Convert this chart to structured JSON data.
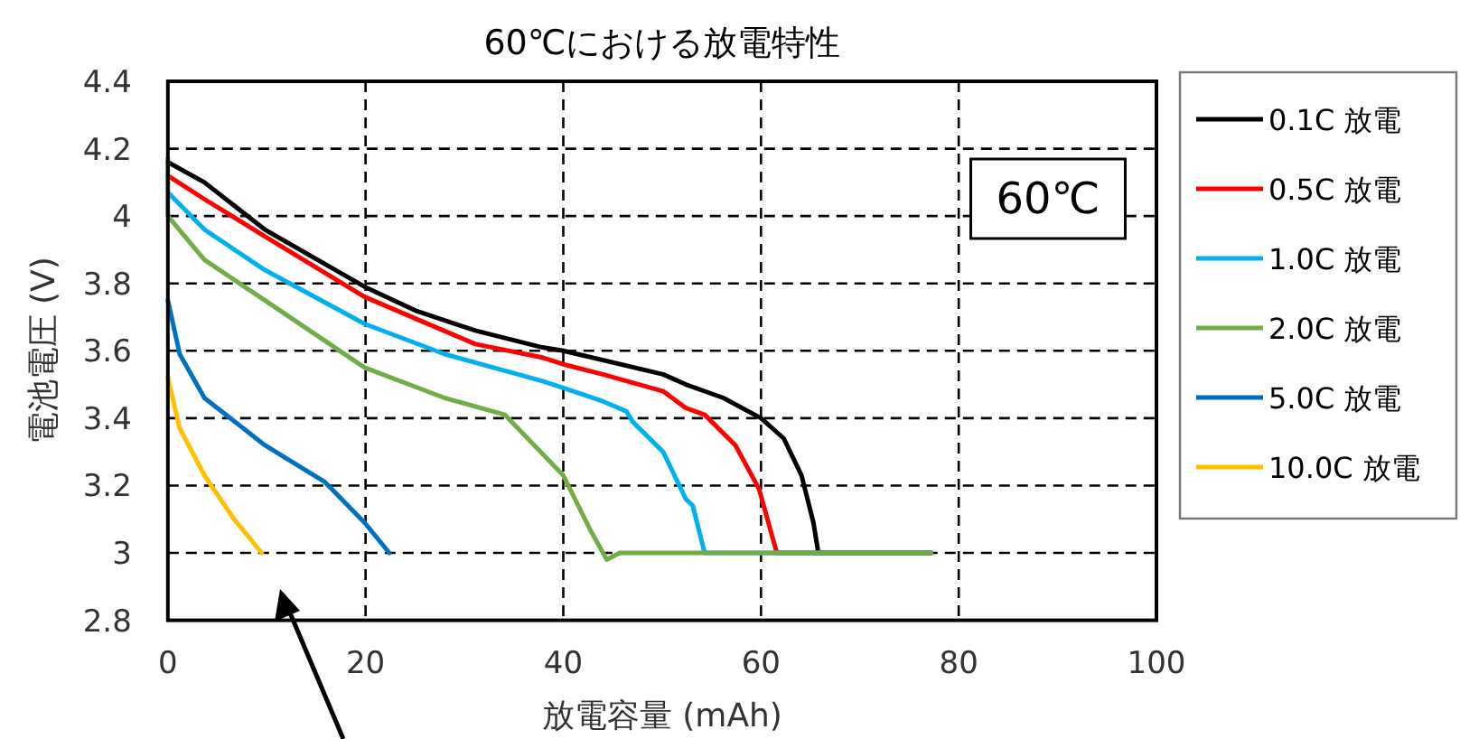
{
  "chart_data": {
    "type": "line",
    "title": "60℃における放電特性",
    "xlabel": "放電容量 (mAh)",
    "ylabel": "電池電圧 (V)",
    "annotations": [
      "60℃"
    ],
    "xlim": [
      0,
      100
    ],
    "xticks": [
      0,
      20,
      40,
      60,
      80,
      100
    ],
    "ylim": [
      2.8,
      4.4
    ],
    "yticks": [
      2.8,
      3,
      3.2,
      3.4,
      3.6,
      3.8,
      4,
      4.2,
      4.4
    ],
    "grid": true,
    "legend": "right",
    "marker": "none",
    "line_style": "solid",
    "series": [
      {
        "name": "0.1C 放電",
        "color": "#000000",
        "x": [
          0,
          3.7,
          9.8,
          19.9,
          25,
          31.1,
          37.9,
          40,
          50.1,
          52.4,
          56.2,
          60,
          62.3,
          64.1,
          65.3,
          65.8,
          77.2
        ],
        "values": [
          4.16,
          4.1,
          3.96,
          3.79,
          3.72,
          3.66,
          3.61,
          3.6,
          3.53,
          3.5,
          3.46,
          3.4,
          3.34,
          3.23,
          3.09,
          3.0,
          3.0
        ]
      },
      {
        "name": "0.5C 放電",
        "color": "#ff0000",
        "x": [
          0,
          3.7,
          9.8,
          19.9,
          31.1,
          37.9,
          40,
          44,
          50.1,
          52.4,
          54.3,
          57.4,
          59.8,
          61.6,
          77.2
        ],
        "values": [
          4.12,
          4.05,
          3.94,
          3.76,
          3.62,
          3.58,
          3.56,
          3.53,
          3.48,
          3.43,
          3.41,
          3.32,
          3.19,
          3.0,
          3.0
        ]
      },
      {
        "name": "1.0C 放電",
        "color": "#00b0f0",
        "x": [
          0,
          3.7,
          9.8,
          19.9,
          28,
          37.9,
          40,
          44,
          46.4,
          47,
          50.1,
          52.4,
          53.1,
          54.3,
          77.2
        ],
        "values": [
          4.07,
          3.96,
          3.84,
          3.68,
          3.59,
          3.51,
          3.49,
          3.45,
          3.42,
          3.39,
          3.3,
          3.16,
          3.14,
          3.0,
          3.0
        ]
      },
      {
        "name": "2.0C 放電",
        "color": "#70ad47",
        "x": [
          0,
          0,
          3.7,
          9.8,
          19.9,
          28,
          34.1,
          40,
          42.7,
          44.4,
          45.7,
          77.2
        ],
        "values": [
          4.17,
          4.0,
          3.87,
          3.75,
          3.55,
          3.46,
          3.41,
          3.23,
          3.07,
          2.98,
          3.0,
          3.0
        ]
      },
      {
        "name": "5.0C 放電",
        "color": "#0070c0",
        "x": [
          0,
          1.2,
          3.7,
          9.8,
          15.9,
          19.9,
          22.4
        ],
        "values": [
          3.75,
          3.59,
          3.46,
          3.32,
          3.21,
          3.09,
          3.0
        ]
      },
      {
        "name": "10.0C 放電",
        "color": "#ffc000",
        "x": [
          0,
          1.2,
          3.7,
          6.7,
          9.5
        ],
        "values": [
          3.52,
          3.37,
          3.23,
          3.1,
          3.0
        ]
      }
    ]
  }
}
